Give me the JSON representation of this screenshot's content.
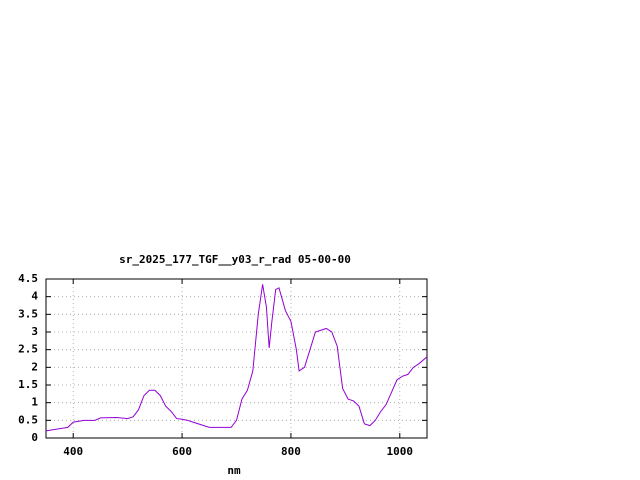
{
  "chart_data": {
    "type": "line",
    "title": "sr_2025_177_TGF__y03_r_rad 05-00-00",
    "x_label": "nm",
    "x": [
      350,
      370,
      390,
      400,
      420,
      440,
      450,
      480,
      500,
      510,
      520,
      530,
      540,
      550,
      560,
      570,
      580,
      590,
      600,
      610,
      620,
      630,
      640,
      650,
      670,
      690,
      700,
      710,
      720,
      730,
      740,
      748,
      755,
      760,
      765,
      772,
      778,
      790,
      800,
      810,
      815,
      825,
      835,
      845,
      855,
      865,
      875,
      885,
      895,
      905,
      915,
      925,
      935,
      945,
      955,
      965,
      975,
      985,
      995,
      1005,
      1015,
      1025,
      1035,
      1050
    ],
    "series": [
      {
        "color": "#9400d3",
        "values": [
          0.2,
          0.25,
          0.3,
          0.45,
          0.5,
          0.5,
          0.57,
          0.58,
          0.55,
          0.6,
          0.8,
          1.2,
          1.35,
          1.35,
          1.2,
          0.9,
          0.75,
          0.55,
          0.53,
          0.5,
          0.45,
          0.4,
          0.35,
          0.3,
          0.3,
          0.3,
          0.5,
          1.1,
          1.35,
          1.9,
          3.5,
          4.35,
          3.7,
          2.55,
          3.3,
          4.2,
          4.25,
          3.6,
          3.3,
          2.5,
          1.9,
          2.0,
          2.5,
          3.0,
          3.05,
          3.1,
          3.0,
          2.6,
          1.4,
          1.1,
          1.05,
          0.9,
          0.4,
          0.35,
          0.5,
          0.75,
          0.95,
          1.3,
          1.65,
          1.75,
          1.8,
          2.0,
          2.1,
          2.3
        ]
      }
    ],
    "xlim": [
      350,
      1050
    ],
    "ylim": [
      0,
      4.5
    ],
    "xticks": [
      400,
      600,
      800,
      1000
    ],
    "yticks": [
      0,
      0.5,
      1,
      1.5,
      2,
      2.5,
      3,
      3.5,
      4,
      4.5
    ],
    "grid": true
  }
}
